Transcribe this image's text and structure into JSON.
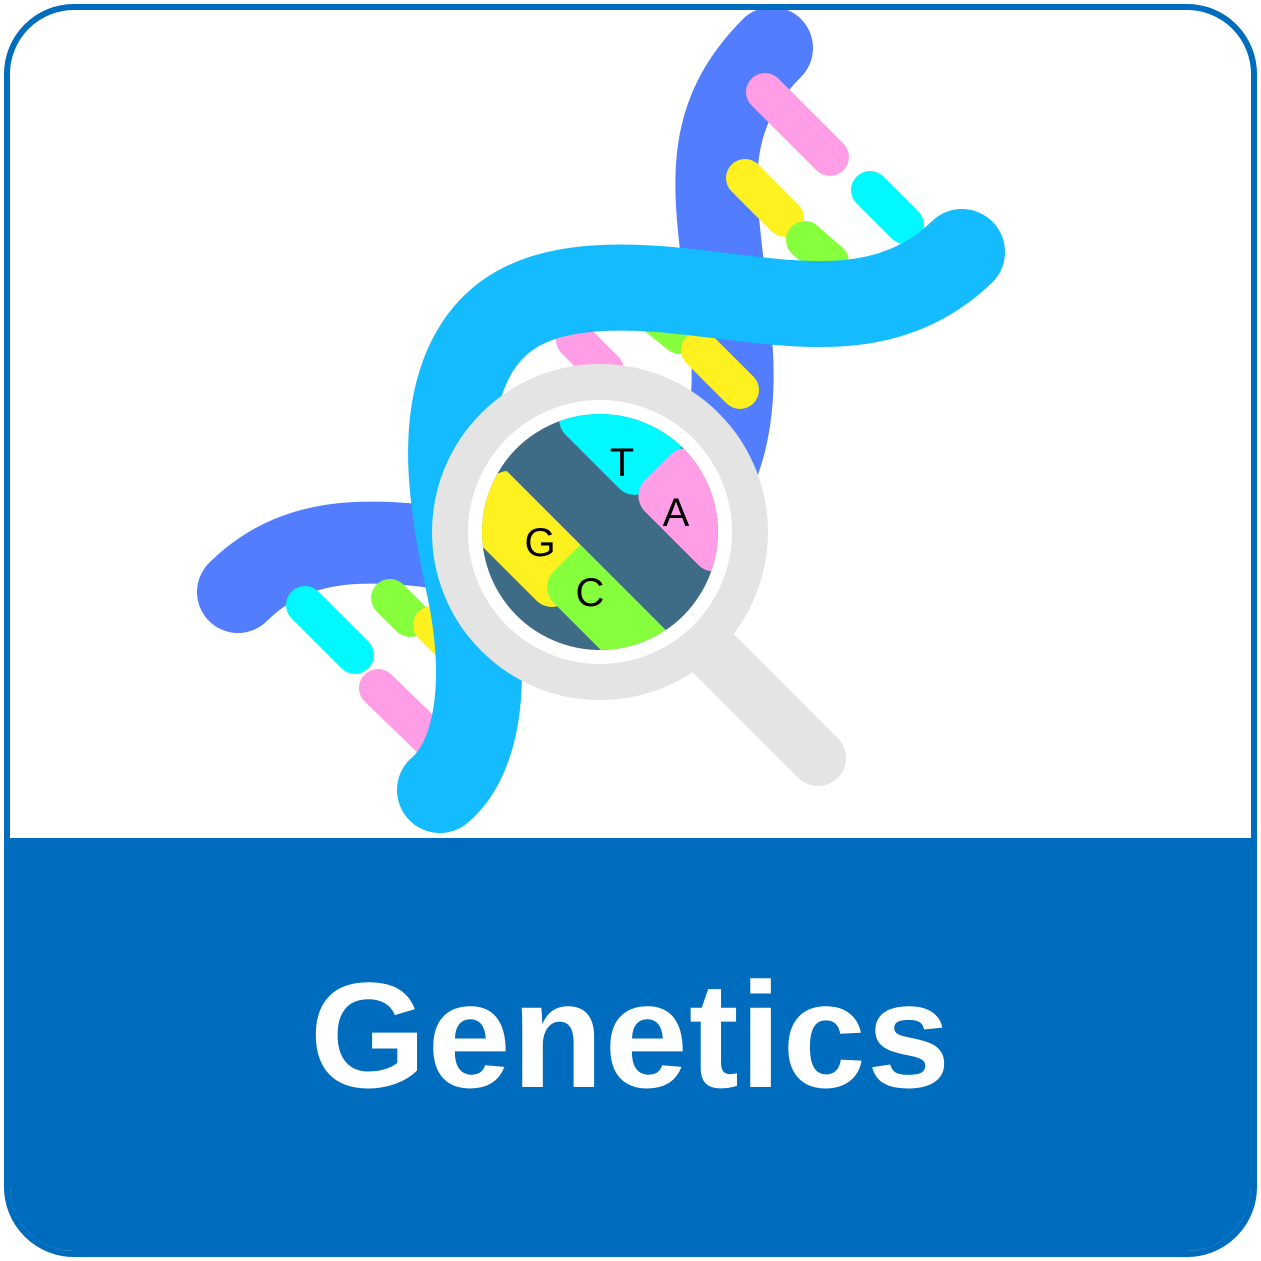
{
  "tile": {
    "title": "Genetics",
    "border_color": "#006cbd",
    "banner_color": "#006cbd"
  },
  "illustration": {
    "icon": "dna-magnifier-icon",
    "bases": {
      "t": "T",
      "a": "A",
      "g": "G",
      "c": "C"
    },
    "colors": {
      "strand_front": "#14bbff",
      "strand_back": "#527dff",
      "pink": "#ff9de6",
      "cyan": "#00f9ff",
      "yellow": "#fff01f",
      "green": "#86ff3d",
      "lens_ring": "#e4e4e4",
      "lens_backbone": "#3e6b85"
    }
  }
}
